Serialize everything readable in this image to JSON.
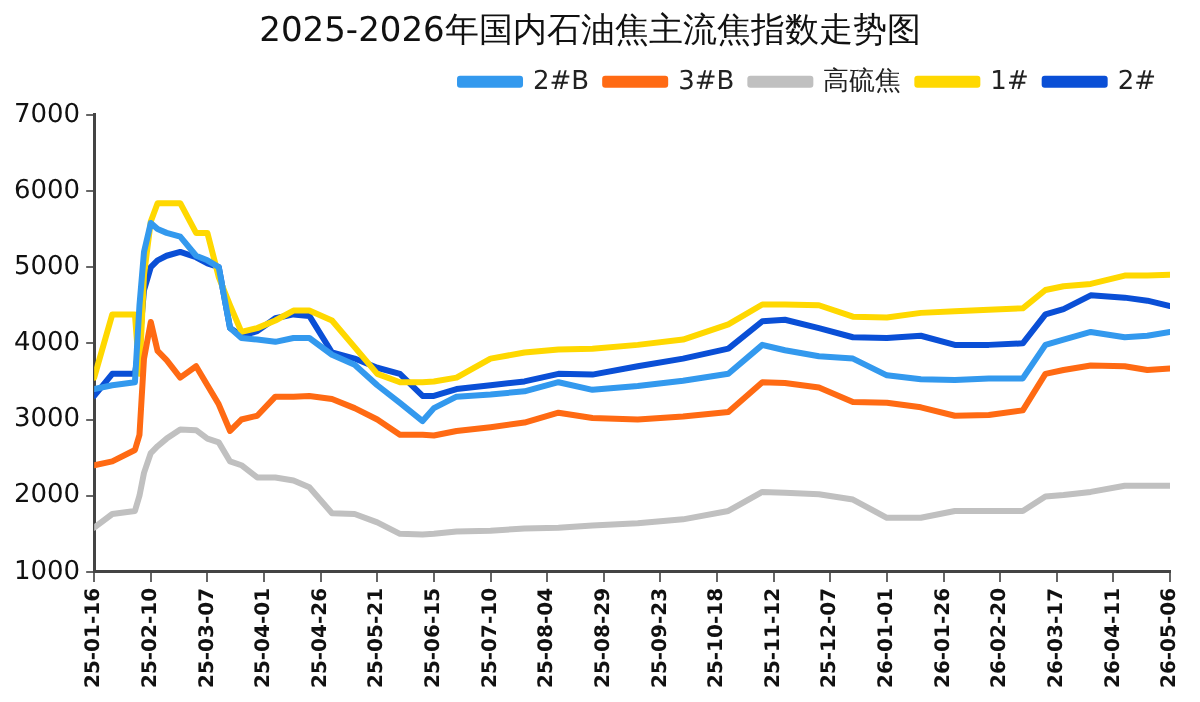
{
  "chart_data": {
    "type": "line",
    "title": "2025-2026年国内石油焦主流焦指数走势图",
    "x": [
      "2025-01-16",
      "2025-01-24",
      "2025-02-03",
      "2025-02-05",
      "2025-02-07",
      "2025-02-10",
      "2025-02-13",
      "2025-02-17",
      "2025-02-23",
      "2025-03-02",
      "2025-03-07",
      "2025-03-12",
      "2025-03-17",
      "2025-03-22",
      "2025-03-29",
      "2025-04-06",
      "2025-04-14",
      "2025-04-21",
      "2025-05-01",
      "2025-05-11",
      "2025-05-21",
      "2025-05-31",
      "2025-06-10",
      "2025-06-15",
      "2025-06-25",
      "2025-07-10",
      "2025-07-25",
      "2025-08-09",
      "2025-08-24",
      "2025-09-13",
      "2025-10-03",
      "2025-10-23",
      "2025-11-07",
      "2025-11-17",
      "2025-12-02",
      "2025-12-17",
      "2026-01-01",
      "2026-01-16",
      "2026-01-31",
      "2026-02-15",
      "2026-03-02",
      "2026-03-12",
      "2026-03-20",
      "2026-04-01",
      "2026-04-16",
      "2026-04-26",
      "2026-05-06"
    ],
    "series": [
      {
        "name": "2#B",
        "color": "#3399ee",
        "values": [
          3400,
          3450,
          3490,
          4500,
          5200,
          5580,
          5500,
          5450,
          5400,
          5150,
          5090,
          5000,
          4200,
          4070,
          4050,
          4020,
          4070,
          4070,
          3850,
          3720,
          3450,
          3220,
          2980,
          3150,
          3300,
          3330,
          3370,
          3490,
          3390,
          3440,
          3510,
          3600,
          3980,
          3910,
          3830,
          3800,
          3580,
          3530,
          3520,
          3540,
          3540,
          3980,
          4050,
          4150,
          4080,
          4100,
          4150
        ]
      },
      {
        "name": "3#B",
        "color": "#ff6a13",
        "values": [
          2400,
          2450,
          2600,
          2800,
          3800,
          4280,
          3900,
          3780,
          3550,
          3700,
          3450,
          3200,
          2850,
          3000,
          3050,
          3300,
          3300,
          3310,
          3270,
          3150,
          3000,
          2800,
          2800,
          2790,
          2850,
          2900,
          2960,
          3090,
          3020,
          3000,
          3040,
          3100,
          3490,
          3480,
          3420,
          3230,
          3220,
          3160,
          3050,
          3060,
          3120,
          3600,
          3650,
          3710,
          3700,
          3650,
          3670
        ]
      },
      {
        "name": "高硫焦",
        "color": "#c0c0c0",
        "values": [
          1580,
          1760,
          1800,
          2000,
          2300,
          2560,
          2650,
          2750,
          2870,
          2860,
          2750,
          2700,
          2450,
          2400,
          2240,
          2240,
          2200,
          2110,
          1770,
          1760,
          1650,
          1500,
          1490,
          1500,
          1530,
          1540,
          1570,
          1580,
          1610,
          1640,
          1690,
          1800,
          2050,
          2040,
          2020,
          1950,
          1710,
          1710,
          1800,
          1800,
          1800,
          1990,
          2010,
          2050,
          2130,
          2130,
          2130
        ]
      },
      {
        "name": "1#",
        "color": "#ffd800",
        "values": [
          3550,
          4380,
          4380,
          3600,
          4900,
          5600,
          5840,
          5840,
          5840,
          5450,
          5450,
          4870,
          4500,
          4150,
          4200,
          4300,
          4430,
          4430,
          4300,
          3950,
          3600,
          3490,
          3490,
          3500,
          3550,
          3800,
          3880,
          3920,
          3930,
          3980,
          4050,
          4250,
          4510,
          4510,
          4500,
          4350,
          4340,
          4400,
          4420,
          4440,
          4460,
          4700,
          4750,
          4780,
          4890,
          4890,
          4900
        ]
      },
      {
        "name": "2#",
        "color": "#0a4fd6",
        "values": [
          3310,
          3600,
          3600,
          4000,
          4700,
          5000,
          5090,
          5150,
          5200,
          5130,
          5050,
          5000,
          4200,
          4100,
          4160,
          4330,
          4380,
          4360,
          3880,
          3800,
          3680,
          3600,
          3310,
          3310,
          3400,
          3450,
          3500,
          3600,
          3590,
          3700,
          3800,
          3930,
          4290,
          4310,
          4200,
          4080,
          4070,
          4100,
          3980,
          3980,
          4000,
          4380,
          4450,
          4630,
          4600,
          4560,
          4490
        ]
      }
    ],
    "xlim": [
      "2025-01-16",
      "2026-05-06"
    ],
    "xticks": [
      {
        "value": "2025-01-16",
        "label": "25-01-16"
      },
      {
        "value": "2025-02-10",
        "label": "25-02-10"
      },
      {
        "value": "2025-03-07",
        "label": "25-03-07"
      },
      {
        "value": "2025-04-01",
        "label": "25-04-01"
      },
      {
        "value": "2025-04-26",
        "label": "25-04-26"
      },
      {
        "value": "2025-05-21",
        "label": "25-05-21"
      },
      {
        "value": "2025-06-15",
        "label": "25-06-15"
      },
      {
        "value": "2025-07-10",
        "label": "25-07-10"
      },
      {
        "value": "2025-08-04",
        "label": "25-08-04"
      },
      {
        "value": "2025-08-29",
        "label": "25-08-29"
      },
      {
        "value": "2025-09-23",
        "label": "25-09-23"
      },
      {
        "value": "2025-10-18",
        "label": "25-10-18"
      },
      {
        "value": "2025-11-12",
        "label": "25-11-12"
      },
      {
        "value": "2025-12-07",
        "label": "25-12-07"
      },
      {
        "value": "2026-01-01",
        "label": "26-01-01"
      },
      {
        "value": "2026-01-26",
        "label": "26-01-26"
      },
      {
        "value": "2026-02-20",
        "label": "26-02-20"
      },
      {
        "value": "2026-03-17",
        "label": "26-03-17"
      },
      {
        "value": "2026-04-11",
        "label": "26-04-11"
      },
      {
        "value": "2026-05-06",
        "label": "26-05-06"
      }
    ],
    "ylim": [
      1000,
      7000
    ],
    "yticks": [
      1000,
      2000,
      3000,
      4000,
      5000,
      6000,
      7000
    ],
    "grid": false,
    "legend": "top right",
    "marker": "none",
    "line_style": "solid"
  }
}
